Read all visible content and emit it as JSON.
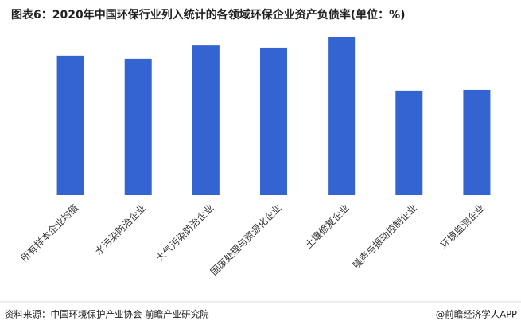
{
  "chart_data": {
    "type": "bar",
    "title": "图表6：2020年中国环保行业列入统计的各领域环保企业资产负债率(单位：%)",
    "categories": [
      "所有样本企业均值",
      "水污染防治企业",
      "大气污染防治企业",
      "固废处理与资源化企业",
      "土壤修复企业",
      "噪声与振动控制企业",
      "环境监测企业"
    ],
    "values": [
      56.5,
      55.2,
      60.6,
      59.7,
      64.2,
      42.3,
      42.6
    ],
    "color": "#3464d2",
    "source": "资料来源：中国环境保护产业协会 前瞻产业研究院",
    "credit": "@前瞻经济学人APP"
  }
}
